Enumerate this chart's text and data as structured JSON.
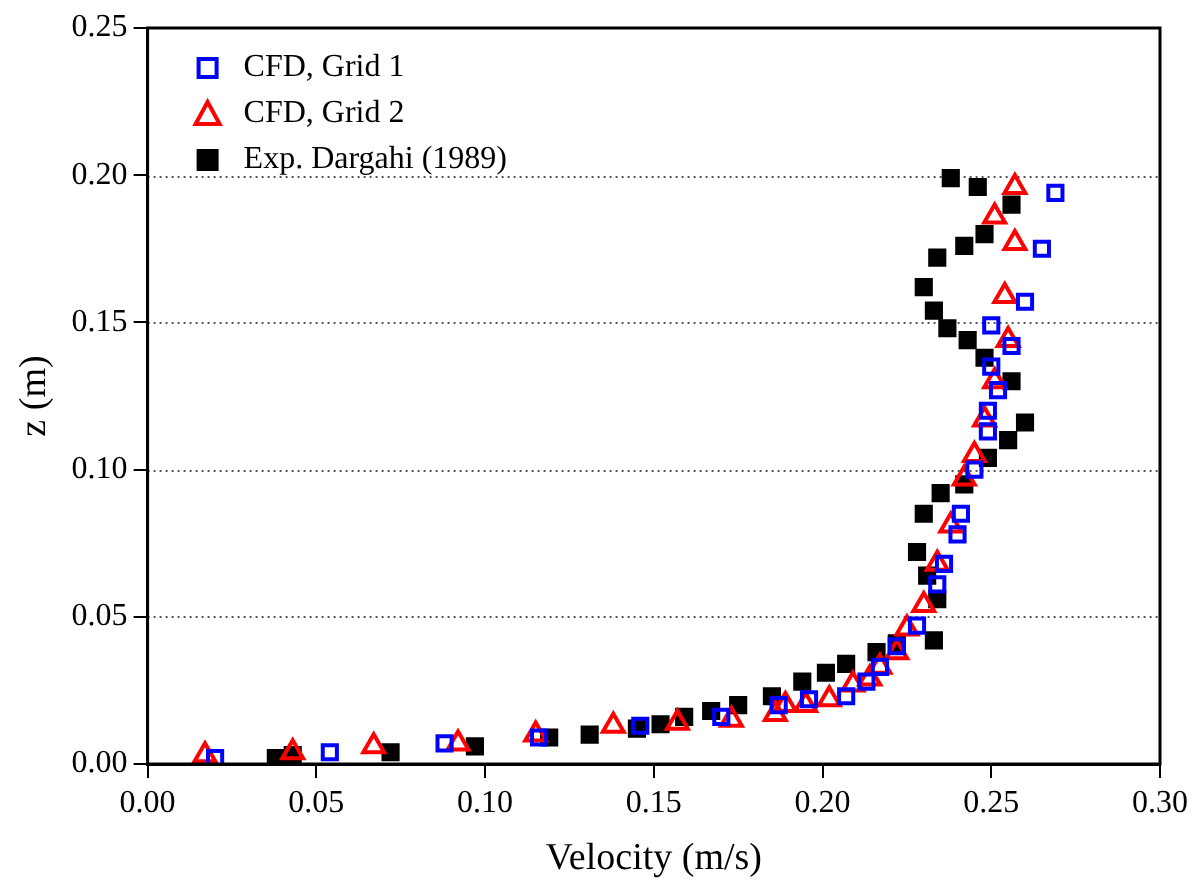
{
  "chart_data": {
    "type": "scatter",
    "xlabel": "Velocity (m/s)",
    "ylabel": "z (m)",
    "xlim": [
      0,
      0.3
    ],
    "xticks": [
      {
        "value": 0,
        "label": "0.00"
      },
      {
        "value": 0.05,
        "label": "0.05"
      },
      {
        "value": 0.1,
        "label": "0.10"
      },
      {
        "value": 0.15,
        "label": "0.15"
      },
      {
        "value": 0.2,
        "label": "0.20"
      },
      {
        "value": 0.25,
        "label": "0.25"
      },
      {
        "value": 0.3,
        "label": "0.30"
      }
    ],
    "ylim": [
      0,
      0.25
    ],
    "yticks": [
      {
        "value": 0,
        "label": "0.00"
      },
      {
        "value": 0.05,
        "label": "0.05"
      },
      {
        "value": 0.1,
        "label": "0.10"
      },
      {
        "value": 0.15,
        "label": "0.15"
      },
      {
        "value": 0.2,
        "label": "0.20"
      },
      {
        "value": 0.25,
        "label": "0.25"
      }
    ],
    "grid": "y",
    "legend": "top left",
    "series": [
      {
        "name": "CFD, Grid 1",
        "color": "#0000ff",
        "marker": "square",
        "x": [
          0.02,
          0.054,
          0.088,
          0.116,
          0.146,
          0.17,
          0.187,
          0.196,
          0.207,
          0.213,
          0.217,
          0.222,
          0.228,
          0.234,
          0.236,
          0.24,
          0.241,
          0.245,
          0.249,
          0.249,
          0.252,
          0.25,
          0.256,
          0.25,
          0.26,
          0.265,
          0.269
        ],
        "values": [
          0.002,
          0.004,
          0.007,
          0.009,
          0.013,
          0.016,
          0.02,
          0.022,
          0.023,
          0.028,
          0.033,
          0.04,
          0.047,
          0.061,
          0.068,
          0.078,
          0.085,
          0.1,
          0.113,
          0.12,
          0.127,
          0.135,
          0.142,
          0.149,
          0.157,
          0.175,
          0.194
        ]
      },
      {
        "name": "CFD, Grid 2",
        "color": "#ff0000",
        "marker": "triangle",
        "x": [
          0.017,
          0.043,
          0.067,
          0.092,
          0.115,
          0.138,
          0.157,
          0.173,
          0.186,
          0.189,
          0.195,
          0.202,
          0.209,
          0.214,
          0.217,
          0.222,
          0.225,
          0.23,
          0.234,
          0.238,
          0.242,
          0.245,
          0.248,
          0.251,
          0.255,
          0.254,
          0.257,
          0.251,
          0.257
        ],
        "values": [
          0.003,
          0.004,
          0.006,
          0.007,
          0.01,
          0.013,
          0.014,
          0.015,
          0.017,
          0.02,
          0.02,
          0.022,
          0.027,
          0.029,
          0.033,
          0.038,
          0.046,
          0.054,
          0.068,
          0.081,
          0.097,
          0.105,
          0.117,
          0.13,
          0.144,
          0.159,
          0.177,
          0.186,
          0.196
        ]
      },
      {
        "name": "Exp. Dargahi (1989)",
        "color": "#000000",
        "marker": "square",
        "x": [
          0.038,
          0.043,
          0.072,
          0.097,
          0.119,
          0.131,
          0.145,
          0.152,
          0.159,
          0.167,
          0.175,
          0.185,
          0.194,
          0.201,
          0.207,
          0.216,
          0.222,
          0.233,
          0.234,
          0.231,
          0.228,
          0.23,
          0.235,
          0.242,
          0.249,
          0.255,
          0.26,
          0.256,
          0.248,
          0.243,
          0.237,
          0.233,
          0.23,
          0.234,
          0.242,
          0.248,
          0.256,
          0.246,
          0.238
        ],
        "values": [
          0.002,
          0.003,
          0.004,
          0.006,
          0.009,
          0.01,
          0.012,
          0.0135,
          0.016,
          0.018,
          0.02,
          0.023,
          0.028,
          0.031,
          0.034,
          0.038,
          0.041,
          0.042,
          0.056,
          0.064,
          0.072,
          0.085,
          0.092,
          0.095,
          0.104,
          0.11,
          0.116,
          0.13,
          0.138,
          0.144,
          0.148,
          0.154,
          0.162,
          0.172,
          0.176,
          0.18,
          0.19,
          0.196,
          0.199
        ]
      }
    ]
  }
}
